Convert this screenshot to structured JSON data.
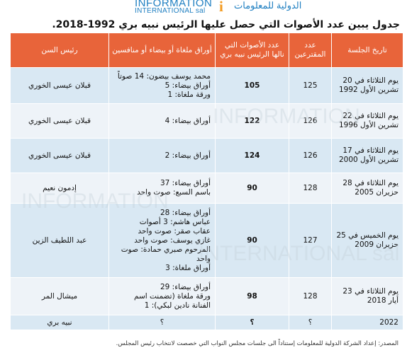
{
  "logo": {
    "en_line1": "INFORMATION",
    "en_line2": "INTERNATIONAL sal",
    "ar_text": "الدولية للمعلومات",
    "brand_color": "#1f7fc1",
    "accent_color": "#f39a1e"
  },
  "title": "جدول يبين عدد الأصوات التي حصل عليها الرئيس نبيه بري 1992-2018.",
  "table": {
    "header_color": "#e8643a",
    "headers": {
      "date": "تاريخ الجلسة",
      "deputies": "عدد المقترعين",
      "votes": "عدد الأصوات التي نالها الرئيس نبيه بري",
      "blank": "أوراق ملغاة أو بيضاء أو منافسين",
      "dean": "رئيس السن"
    },
    "rows": [
      {
        "date": "يوم الثلاثاء في 20 تشرين الأول 1992",
        "deputies": "125",
        "votes": "105",
        "blank": [
          "محمد يوسف بيضون: 14 صوتاً",
          "أوراق بيضاء: 5",
          "ورقة ملغاة: 1"
        ],
        "dean": "قبلان عيسى الخوري"
      },
      {
        "date": "يوم الثلاثاء في 22 تشرين الأول 1996",
        "deputies": "126",
        "votes": "122",
        "blank": [
          "أوراق بيضاء: 4"
        ],
        "dean": "قبلان عيسى الخوري"
      },
      {
        "date": "يوم الثلاثاء في 17 تشرين الأول 2000",
        "deputies": "126",
        "votes": "124",
        "blank": [
          "أوراق بيضاء: 2"
        ],
        "dean": "قبلان عيسى الخوري"
      },
      {
        "date": "يوم الثلاثاء في 28 حزيران 2005",
        "deputies": "128",
        "votes": "90",
        "blank": [
          "أوراق بيضاء: 37",
          "باسم السبع: صوت واحد"
        ],
        "dean": "إدمون نعيم"
      },
      {
        "date": "يوم الخميس في 25 حزيران 2009",
        "deputies": "127",
        "votes": "90",
        "blank": [
          "أوراق بيضاء: 28",
          "عباس هاشم: 3 أصوات",
          "عقاب صقر: صوت واحد",
          "غازي يوسف: صوت واحد",
          "المرحوم صبري حمادة: صوت واحد",
          "أوراق ملغاة: 3"
        ],
        "dean": "عبد اللطيف الزين"
      },
      {
        "date": "يوم الثلاثاء في 23 أيار 2018",
        "deputies": "128",
        "votes": "98",
        "blank": [
          "أوراق بيضاء: 29",
          "ورقة ملغاة (تضمنت اسم الفنانة نادين لبكي): 1"
        ],
        "dean": "ميشال المر"
      },
      {
        "date": "2022",
        "deputies": "؟",
        "votes": "؟",
        "blank": [
          "؟"
        ],
        "dean": "نبيه بري"
      }
    ]
  },
  "source": "المصدر: إعداد الشركة الدولية للمعلومات إستناداً الى جلسات مجلس النواب التي خصصت لانتخاب رئيس المجلس."
}
